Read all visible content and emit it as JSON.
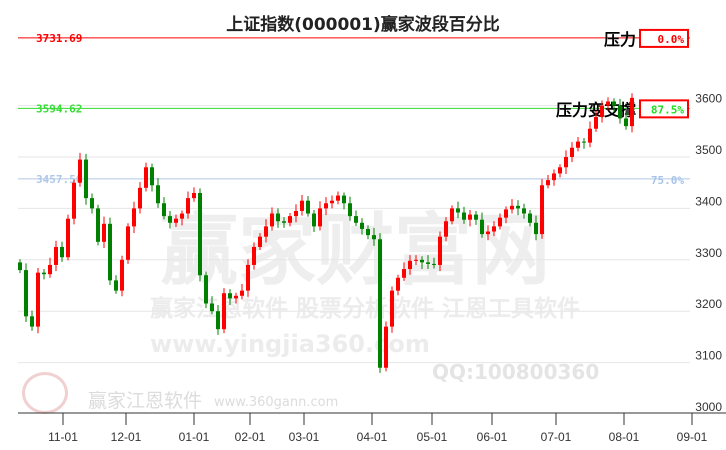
{
  "chart_data": {
    "type": "candlestick",
    "title": "上证指数(000001)赢家波段百分比",
    "ylim": [
      3000,
      3731.69
    ],
    "y_ticks": [
      3000,
      3100,
      3200,
      3300,
      3400,
      3500,
      3600
    ],
    "x_ticks": [
      "11-01",
      "12-01",
      "01-01",
      "02-01",
      "03-01",
      "04-01",
      "05-01",
      "06-01",
      "07-01",
      "08-01",
      "09-01"
    ],
    "closes": [
      3280,
      3190,
      3170,
      3275,
      3272,
      3290,
      3325,
      3305,
      3380,
      3450,
      3495,
      3420,
      3400,
      3335,
      3370,
      3260,
      3240,
      3300,
      3365,
      3400,
      3440,
      3480,
      3445,
      3410,
      3385,
      3372,
      3380,
      3390,
      3420,
      3430,
      3270,
      3215,
      3200,
      3165,
      3235,
      3225,
      3230,
      3240,
      3290,
      3325,
      3345,
      3365,
      3390,
      3375,
      3372,
      3385,
      3395,
      3415,
      3390,
      3365,
      3400,
      3410,
      3415,
      3425,
      3410,
      3385,
      3372,
      3360,
      3348,
      3340,
      3090,
      3170,
      3240,
      3265,
      3282,
      3298,
      3300,
      3295,
      3292,
      3290,
      3345,
      3375,
      3400,
      3392,
      3378,
      3388,
      3378,
      3350,
      3355,
      3365,
      3382,
      3398,
      3405,
      3400,
      3390,
      3372,
      3350,
      3445,
      3455,
      3468,
      3480,
      3500,
      3518,
      3530,
      3528,
      3555,
      3578,
      3600,
      3608,
      3600,
      3575,
      3560,
      3615
    ],
    "levels": [
      {
        "value": "3731.69",
        "price": 3731.69,
        "pct": "0.0%",
        "label": "压力",
        "color": "#ff0000",
        "pct_color": "#ff0000",
        "boxed": true
      },
      {
        "value": "3594.62",
        "price": 3594.62,
        "pct": "87.5%",
        "label": "压力变支撑",
        "color": "#33dd33",
        "pct_color": "#22dd22",
        "boxed": true
      },
      {
        "value": "3457.50",
        "price": 3457.5,
        "pct": "75.0%",
        "label": "",
        "color": "#b0c8e8",
        "pct_color": "#a8c4e8",
        "boxed": false
      }
    ],
    "colors": {
      "up": "#ff0000",
      "down": "#008000"
    }
  },
  "watermarks": {
    "big": "赢家财富网",
    "line1": "赢家江恩软件 股票分析软件 江恩工具软件",
    "url": "www.yingjia360.com",
    "qq": "QQ:100800360",
    "logo_name": "赢家江恩软件",
    "logo_url": "www.360gann.com"
  }
}
